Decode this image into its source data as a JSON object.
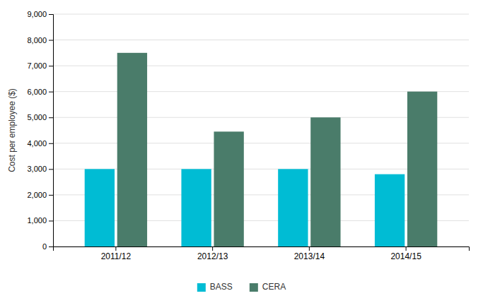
{
  "chart_data": {
    "type": "bar",
    "categories": [
      "2011/12",
      "2012/13",
      "2013/14",
      "2014/15"
    ],
    "series": [
      {
        "name": "BASS",
        "color": "#00BCD4",
        "values": [
          3000,
          3000,
          3000,
          2800
        ]
      },
      {
        "name": "CERA",
        "color": "#4A7C6A",
        "values": [
          7500,
          4450,
          5000,
          6000
        ]
      }
    ],
    "ylabel": "Cost per employee ($)",
    "ylim": [
      0,
      9000
    ],
    "yticks": [
      0,
      {
        "value": 1000,
        "label": "1,000"
      },
      {
        "value": 2000,
        "label": "2,000"
      },
      {
        "value": 3000,
        "label": "3,000"
      },
      {
        "value": 4000,
        "label": "4,000"
      },
      {
        "value": 5000,
        "label": "5,000"
      },
      {
        "value": 6000,
        "label": "6,000"
      },
      {
        "value": 7000,
        "label": "7,000"
      },
      {
        "value": 8000,
        "label": "8,000"
      },
      {
        "value": 9000,
        "label": "9,000"
      }
    ],
    "grid": true,
    "legend": "bottom"
  }
}
